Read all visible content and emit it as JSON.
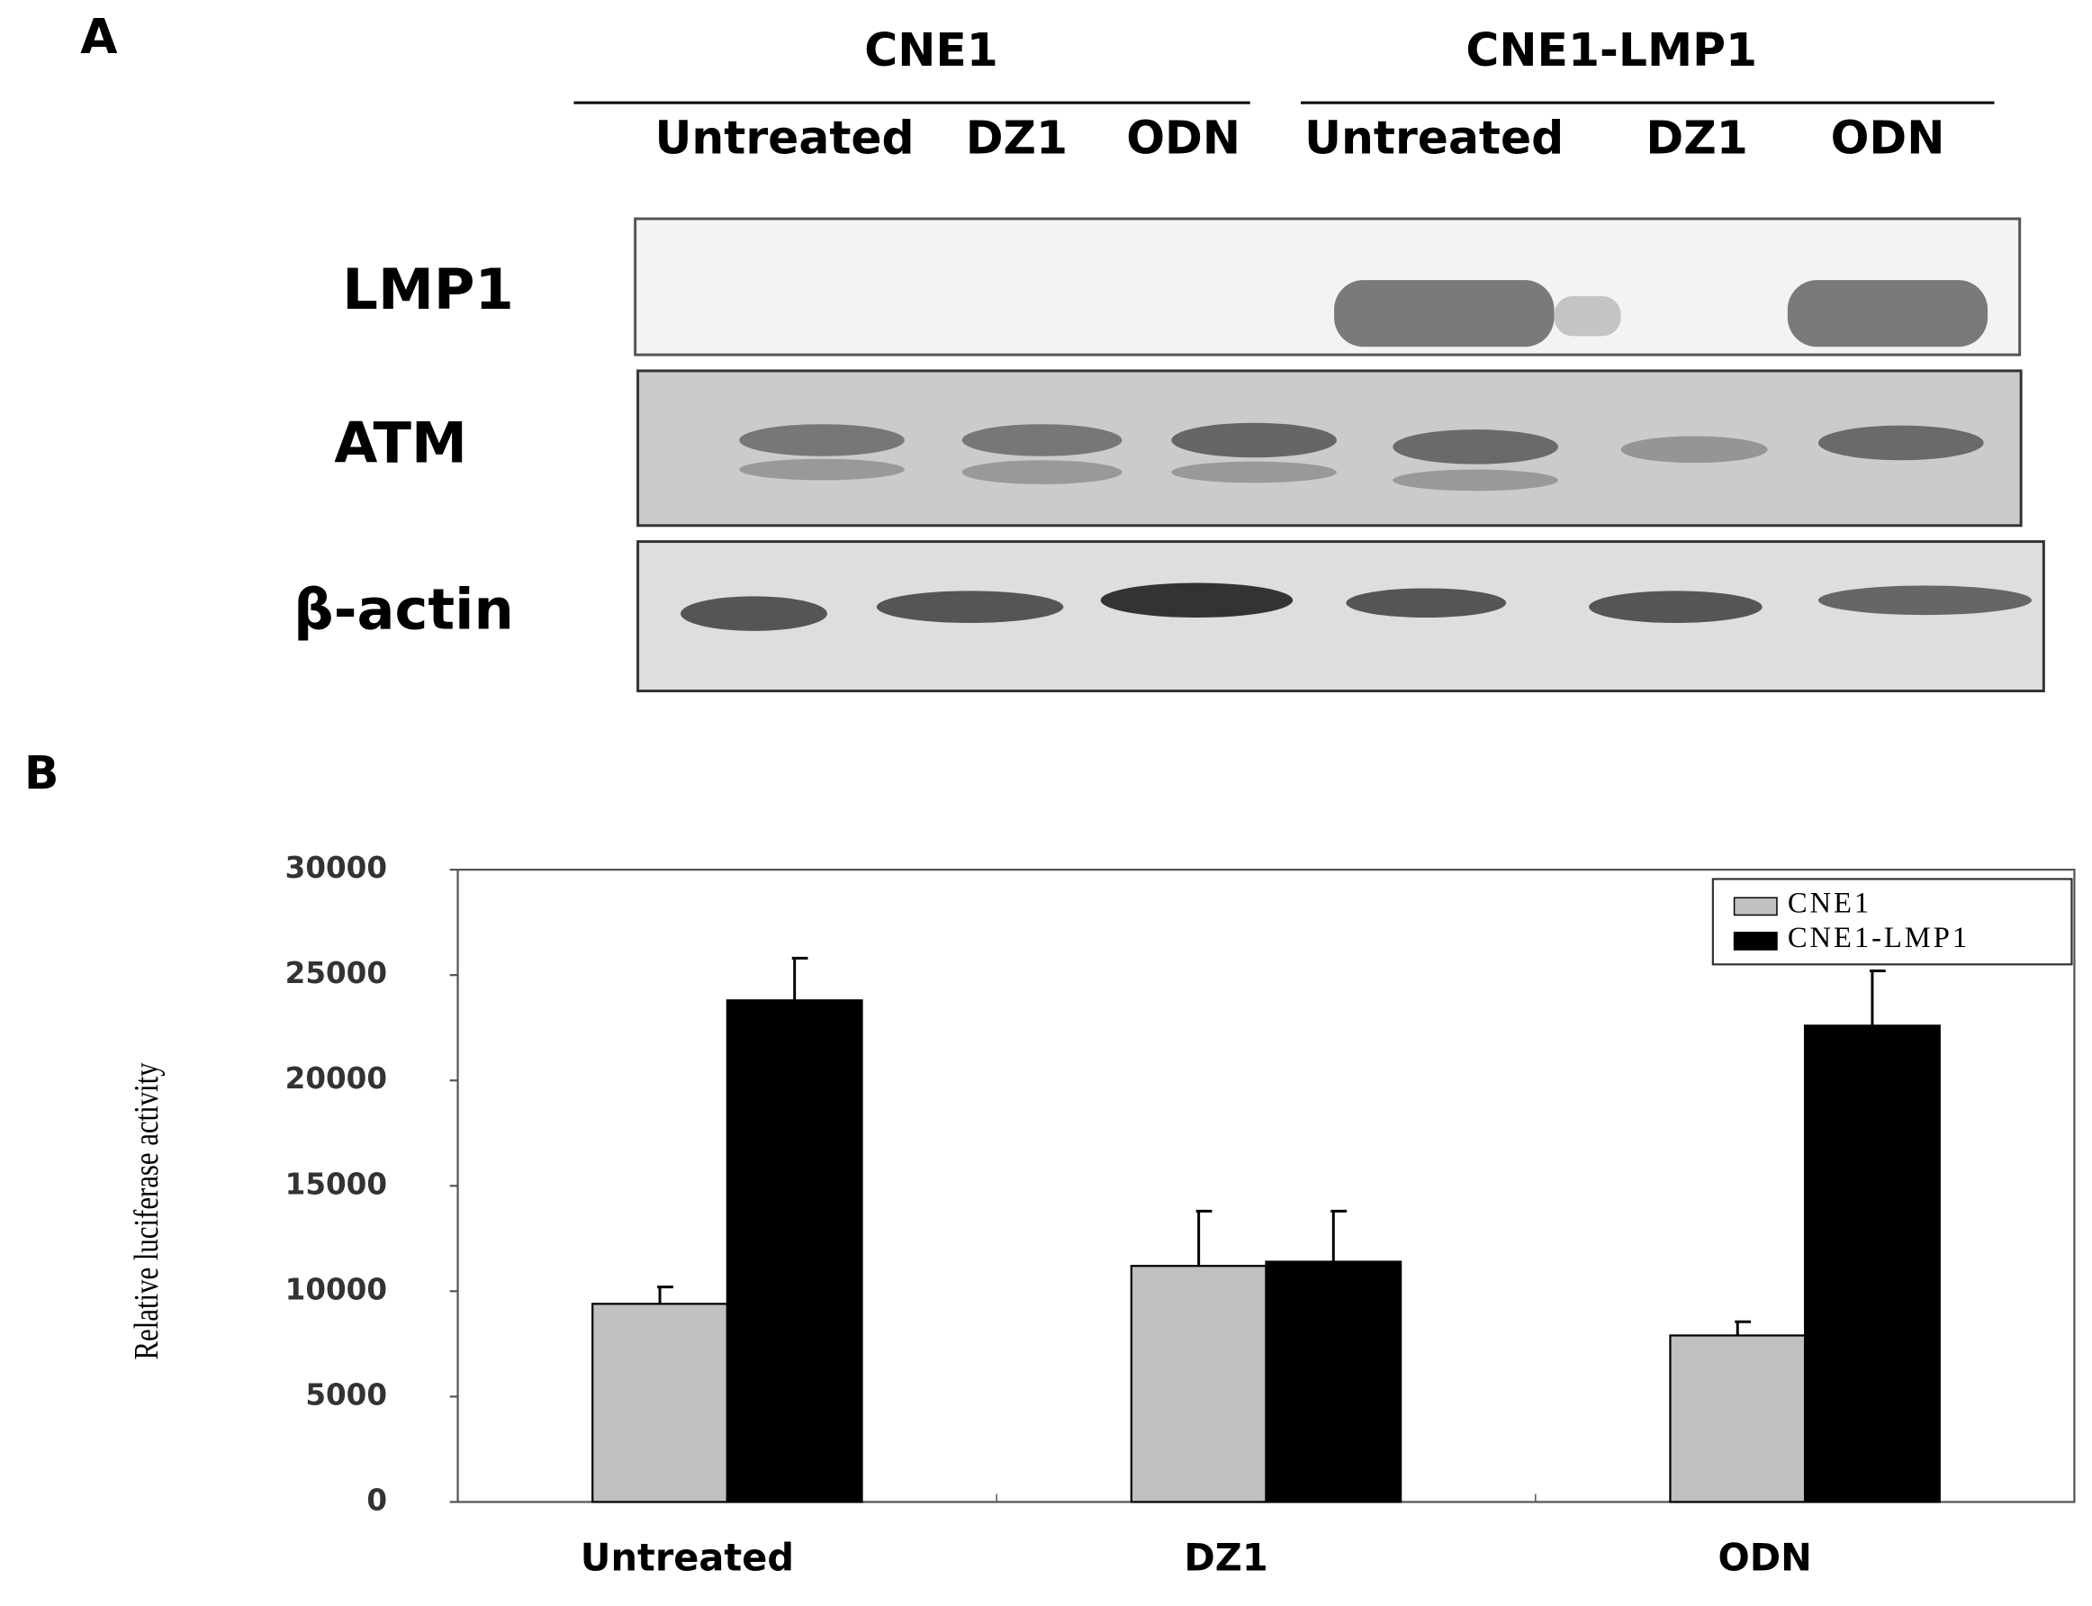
{
  "panel_a": {
    "label": "A",
    "groups": [
      {
        "name": "CNE1",
        "lanes": [
          "Untreated",
          "DZ1",
          "ODN"
        ]
      },
      {
        "name": "CNE1-LMP1",
        "lanes": [
          "Untreated",
          "DZ1",
          "ODN"
        ]
      }
    ],
    "blots": [
      "LMP1",
      "ATM",
      "β-actin"
    ]
  },
  "chart_data": {
    "type": "bar",
    "panel_label": "B",
    "ylabel": "Relative luciferase activity",
    "categories": [
      "Untreated",
      "DZ1",
      "ODN"
    ],
    "series": [
      {
        "name": "CNE1",
        "color": "#c0c0c0",
        "values": [
          9400,
          11200,
          7900
        ],
        "errors": [
          800,
          2600,
          650
        ]
      },
      {
        "name": "CNE1-LMP1",
        "color": "#000000",
        "values": [
          23800,
          11400,
          22600
        ],
        "errors": [
          2000,
          2400,
          2600
        ]
      }
    ],
    "ylim": [
      0,
      30000
    ],
    "yticks": [
      0,
      5000,
      10000,
      15000,
      20000,
      25000,
      30000
    ],
    "legend": "upper right"
  }
}
